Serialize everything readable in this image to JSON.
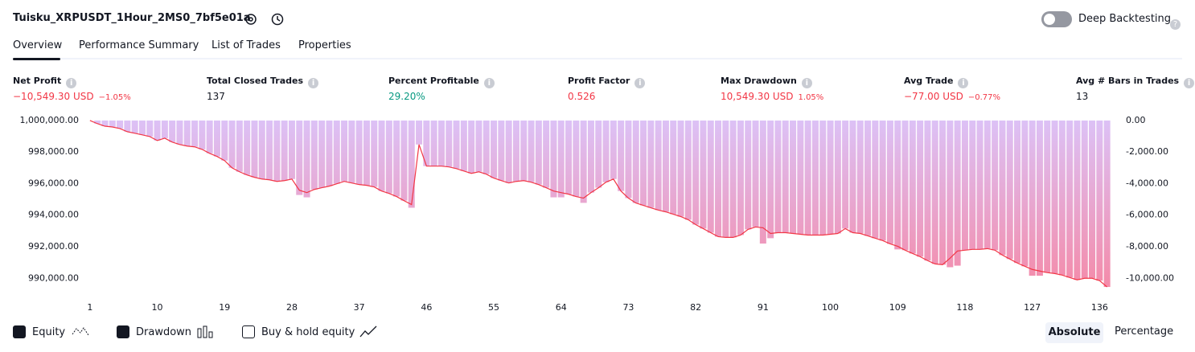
{
  "header": {
    "title": "Tuisku_XRPUSDT_1Hour_2MS0_7bf5e01a",
    "toggle_label": "Deep Backtesting"
  },
  "tabs": [
    "Overview",
    "Performance Summary",
    "List of Trades",
    "Properties"
  ],
  "stats": [
    {
      "label": "Net Profit",
      "value": "−10,549.30 USD",
      "change": "−1.05%"
    },
    {
      "label": "Total Closed Trades",
      "value": "137"
    },
    {
      "label": "Percent Profitable",
      "value": "29.20%"
    },
    {
      "label": "Profit Factor",
      "value": "0.526"
    },
    {
      "label": "Max Drawdown",
      "value": "10,549.30 USD",
      "change": "1.05%"
    },
    {
      "label": "Avg Trade",
      "value": "−77.00 USD",
      "change": "−0.77%"
    },
    {
      "label": "Avg # Bars in Trades",
      "value": "13"
    }
  ],
  "chart_data": {
    "type": "line",
    "x": [
      1,
      2,
      3,
      4,
      5,
      6,
      7,
      8,
      9,
      10,
      11,
      12,
      13,
      14,
      15,
      16,
      17,
      18,
      19,
      20,
      21,
      22,
      23,
      24,
      25,
      26,
      27,
      28,
      29,
      30,
      31,
      32,
      33,
      34,
      35,
      36,
      37,
      38,
      39,
      40,
      41,
      42,
      43,
      44,
      45,
      46,
      47,
      48,
      49,
      50,
      51,
      52,
      53,
      54,
      55,
      56,
      57,
      58,
      59,
      60,
      61,
      62,
      63,
      64,
      65,
      66,
      67,
      68,
      69,
      70,
      71,
      72,
      73,
      74,
      75,
      76,
      77,
      78,
      79,
      80,
      81,
      82,
      83,
      84,
      85,
      86,
      87,
      88,
      89,
      90,
      91,
      92,
      93,
      94,
      95,
      96,
      97,
      98,
      99,
      100,
      101,
      102,
      103,
      104,
      105,
      106,
      107,
      108,
      109,
      110,
      111,
      112,
      113,
      114,
      115,
      116,
      117,
      118,
      119,
      120,
      121,
      122,
      123,
      124,
      125,
      126,
      127,
      128,
      129,
      130,
      131,
      132,
      133,
      134,
      135,
      136,
      137
    ],
    "series": [
      {
        "name": "Equity",
        "color": "#f23645",
        "values": [
          1000000,
          999800,
          999640,
          999590,
          999490,
          999290,
          999190,
          999090,
          998980,
          998730,
          998880,
          998630,
          998480,
          998380,
          998330,
          998170,
          997920,
          997720,
          997460,
          997000,
          996750,
          996550,
          996400,
          996290,
          996240,
          996140,
          996190,
          996290,
          995580,
          995430,
          995630,
          995740,
          995840,
          995990,
          996140,
          996040,
          995940,
          995890,
          995790,
          995530,
          995380,
          995180,
          994920,
          994670,
          998480,
          997110,
          997110,
          997110,
          997060,
          996950,
          996800,
          996650,
          996750,
          996600,
          996350,
          996190,
          996040,
          996140,
          996190,
          996090,
          995940,
          995740,
          995530,
          995430,
          995330,
          995180,
          995080,
          995430,
          995740,
          996090,
          996290,
          995530,
          995080,
          994770,
          994620,
          994470,
          994320,
          994210,
          994060,
          993910,
          993710,
          993400,
          993150,
          992890,
          992640,
          992590,
          992590,
          992740,
          993100,
          993250,
          993200,
          992840,
          992890,
          992890,
          992840,
          992790,
          992740,
          992740,
          992740,
          992790,
          992840,
          993150,
          992890,
          992840,
          992690,
          992540,
          992390,
          992180,
          992030,
          991780,
          991570,
          991370,
          991120,
          990910,
          990860,
          991270,
          991730,
          991780,
          991830,
          991830,
          991880,
          991780,
          991470,
          991220,
          990970,
          990760,
          990560,
          990460,
          990360,
          990300,
          990200,
          990050,
          989900,
          990000,
          990000,
          989850,
          989450.7
        ]
      },
      {
        "name": "Drawdown",
        "color": "#dcc2f7",
        "axis": "y2",
        "values": [
          0,
          -200,
          -360,
          -410,
          -510,
          -710,
          -810,
          -910,
          -1020,
          -1270,
          -1120,
          -1370,
          -1520,
          -1620,
          -1670,
          -1830,
          -2080,
          -2280,
          -2540,
          -3000,
          -3250,
          -3450,
          -3600,
          -3710,
          -3760,
          -3860,
          -3810,
          -3710,
          -4720,
          -4870,
          -4370,
          -4260,
          -4160,
          -4010,
          -3860,
          -3960,
          -4060,
          -4110,
          -4210,
          -4470,
          -4620,
          -4820,
          -5080,
          -5530,
          -1520,
          -2890,
          -2890,
          -2890,
          -2940,
          -3050,
          -3200,
          -3350,
          -3250,
          -3400,
          -3650,
          -3810,
          -3960,
          -3860,
          -3810,
          -3910,
          -4060,
          -4260,
          -4870,
          -4870,
          -4670,
          -4820,
          -5220,
          -4570,
          -4260,
          -3910,
          -3710,
          -4470,
          -4920,
          -5230,
          -5380,
          -5530,
          -5680,
          -5790,
          -5940,
          -6090,
          -6290,
          -6600,
          -6850,
          -7110,
          -7360,
          -7410,
          -7410,
          -7260,
          -6900,
          -6750,
          -7800,
          -7460,
          -7110,
          -7110,
          -7160,
          -7210,
          -7260,
          -7260,
          -7260,
          -7210,
          -7160,
          -6850,
          -7110,
          -7160,
          -7310,
          -7460,
          -7610,
          -7820,
          -8170,
          -8220,
          -8430,
          -8630,
          -8880,
          -9090,
          -9140,
          -9300,
          -9200,
          -8220,
          -8170,
          -8170,
          -8120,
          -8220,
          -8530,
          -8780,
          -9030,
          -9240,
          -9840,
          -9840,
          -9640,
          -9700,
          -9800,
          -9950,
          -10100,
          -10000,
          -10000,
          -10150,
          -10549.3
        ]
      }
    ],
    "xlim": [
      0.8,
      137.9
    ],
    "xticks": [
      1,
      10,
      19,
      28,
      37,
      46,
      55,
      64,
      73,
      82,
      91,
      100,
      109,
      118,
      127,
      136
    ],
    "ylim": [
      989300,
      1000150
    ],
    "yticks": [
      {
        "value": 1000000,
        "label": "1,000,000.00"
      },
      {
        "value": 998000,
        "label": "998,000.00"
      },
      {
        "value": 996000,
        "label": "996,000.00"
      },
      {
        "value": 994000,
        "label": "994,000.00"
      },
      {
        "value": 992000,
        "label": "992,000.00"
      },
      {
        "value": 990000,
        "label": "990,000.00"
      }
    ],
    "y2lim": [
      -10700,
      150
    ],
    "y2ticks": [
      {
        "value": 0,
        "label": "0.00"
      },
      {
        "value": -2000,
        "label": "-2,000.00"
      },
      {
        "value": -4000,
        "label": "-4,000.00"
      },
      {
        "value": -6000,
        "label": "-6,000.00"
      },
      {
        "value": -8000,
        "label": "-8,000.00"
      },
      {
        "value": -10000,
        "label": "-10,000.00"
      }
    ]
  },
  "footer": {
    "buy_hold_label": "Buy & hold equity",
    "absolute": "Absolute",
    "percentage": "Percentage"
  }
}
